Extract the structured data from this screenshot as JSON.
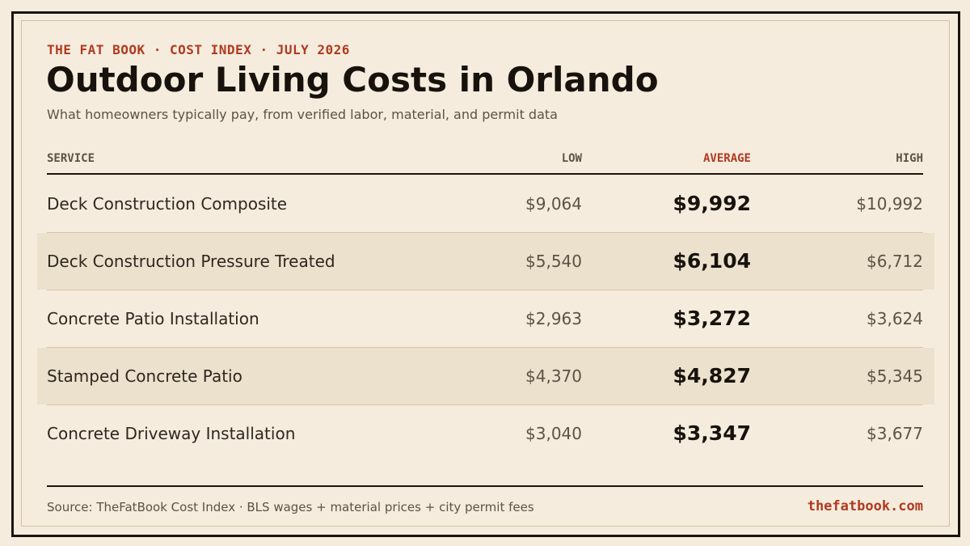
{
  "header": {
    "kicker": "THE FAT BOOK · COST INDEX · JULY 2026",
    "title": "Outdoor Living Costs in Orlando",
    "subtitle": "What homeowners typically pay, from verified labor, material, and permit data"
  },
  "columns": {
    "service": "SERVICE",
    "low": "LOW",
    "average": "AVERAGE",
    "high": "HIGH"
  },
  "colors": {
    "accent": "#b03a21",
    "background": "#f5ecdd",
    "row_shade": "#ece1cd",
    "ink": "#17120c"
  },
  "chart_data": {
    "type": "table",
    "title": "Outdoor Living Costs in Orlando",
    "columns": [
      "SERVICE",
      "LOW",
      "AVERAGE",
      "HIGH"
    ],
    "rows": [
      {
        "service": "Deck Construction Composite",
        "low": "$9,064",
        "average": "$9,992",
        "high": "$10,992"
      },
      {
        "service": "Deck Construction Pressure Treated",
        "low": "$5,540",
        "average": "$6,104",
        "high": "$6,712"
      },
      {
        "service": "Concrete Patio Installation",
        "low": "$2,963",
        "average": "$3,272",
        "high": "$3,624"
      },
      {
        "service": "Stamped Concrete Patio",
        "low": "$4,370",
        "average": "$4,827",
        "high": "$5,345"
      },
      {
        "service": "Concrete Driveway Installation",
        "low": "$3,040",
        "average": "$3,347",
        "high": "$3,677"
      }
    ]
  },
  "footer": {
    "source": "Source: TheFatBook Cost Index · BLS wages + material prices + city permit fees",
    "site": "thefatbook.com"
  }
}
